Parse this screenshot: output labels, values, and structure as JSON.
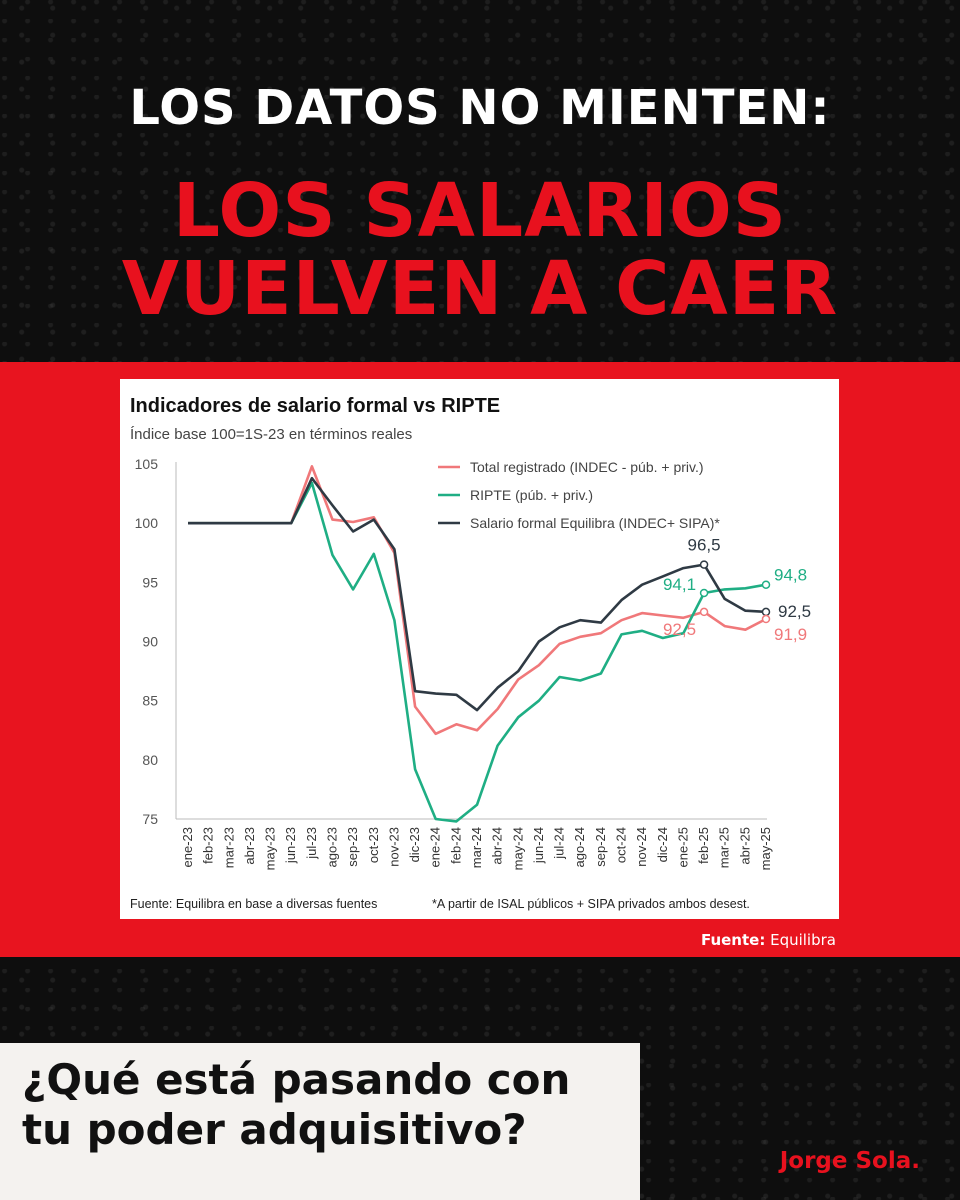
{
  "headline": {
    "line1": "LOS DATOS NO MIENTEN:",
    "line2a": "LOS SALARIOS",
    "line2b": "VUELVEN A CAER"
  },
  "source_label": "Fuente:",
  "source_value": " Equilibra",
  "question": "¿Qué está pasando con tu poder adquisitivo?",
  "signature": "Jorge Sola.",
  "colors": {
    "red": "#e8111e",
    "pink": "#f0787a",
    "green": "#1fae84",
    "dark": "#2f3a44"
  },
  "chart_data": {
    "type": "line",
    "title": "Indicadores de salario formal vs RIPTE",
    "subtitle": "Índice base 100=1S-23 en términos reales",
    "footnote_left": "Fuente: Equilibra en base a diversas fuentes",
    "footnote_right": "*A partir de ISAL públicos  + SIPA privados ambos desest.",
    "ylim": [
      75,
      105
    ],
    "yticks": [
      105,
      100,
      95,
      90,
      85,
      80,
      75
    ],
    "grid": false,
    "legend_position": "top-right",
    "categories": [
      "ene-23",
      "feb-23",
      "mar-23",
      "abr-23",
      "may-23",
      "jun-23",
      "jul-23",
      "ago-23",
      "sep-23",
      "oct-23",
      "nov-23",
      "dic-23",
      "ene-24",
      "feb-24",
      "mar-24",
      "abr-24",
      "may-24",
      "jun-24",
      "jul-24",
      "ago-24",
      "sep-24",
      "oct-24",
      "nov-24",
      "dic-24",
      "ene-25",
      "feb-25",
      "mar-25",
      "abr-25",
      "may-25"
    ],
    "series": [
      {
        "name": "Total registrado (INDEC - púb. + priv.)",
        "color": "#f0787a",
        "values": [
          100,
          100,
          100,
          100,
          100,
          100,
          104.8,
          100.3,
          100.1,
          100.5,
          97.5,
          84.5,
          82.2,
          83.0,
          82.5,
          84.3,
          86.8,
          88.0,
          89.8,
          90.4,
          90.7,
          91.8,
          92.4,
          92.2,
          92.0,
          92.5,
          91.3,
          91.0,
          91.9
        ]
      },
      {
        "name": "RIPTE (púb. + priv.)",
        "color": "#1fae84",
        "values": [
          100,
          100,
          100,
          100,
          100,
          100,
          103.4,
          97.3,
          94.4,
          97.4,
          91.8,
          79.2,
          75.0,
          74.8,
          76.2,
          81.2,
          83.6,
          85.0,
          87.0,
          86.7,
          87.3,
          90.6,
          90.9,
          90.3,
          90.7,
          94.1,
          94.4,
          94.5,
          94.8
        ]
      },
      {
        "name": "Salario formal Equilibra (INDEC+ SIPA)*",
        "color": "#2f3a44",
        "values": [
          100,
          100,
          100,
          100,
          100,
          100,
          103.8,
          101.5,
          99.3,
          100.3,
          97.8,
          85.8,
          85.6,
          85.5,
          84.2,
          86.1,
          87.5,
          90.0,
          91.2,
          91.8,
          91.6,
          93.5,
          94.8,
          95.5,
          96.2,
          96.5,
          93.6,
          92.6,
          92.5
        ]
      }
    ],
    "annotations": [
      {
        "series": 2,
        "index": 25,
        "text": "96,5"
      },
      {
        "series": 1,
        "index": 28,
        "text": "94,8"
      },
      {
        "series": 1,
        "index": 25,
        "text": "94,1"
      },
      {
        "series": 2,
        "index": 28,
        "text": "92,5"
      },
      {
        "series": 0,
        "index": 25,
        "text": "92,5"
      },
      {
        "series": 0,
        "index": 28,
        "text": "91,9"
      }
    ]
  }
}
